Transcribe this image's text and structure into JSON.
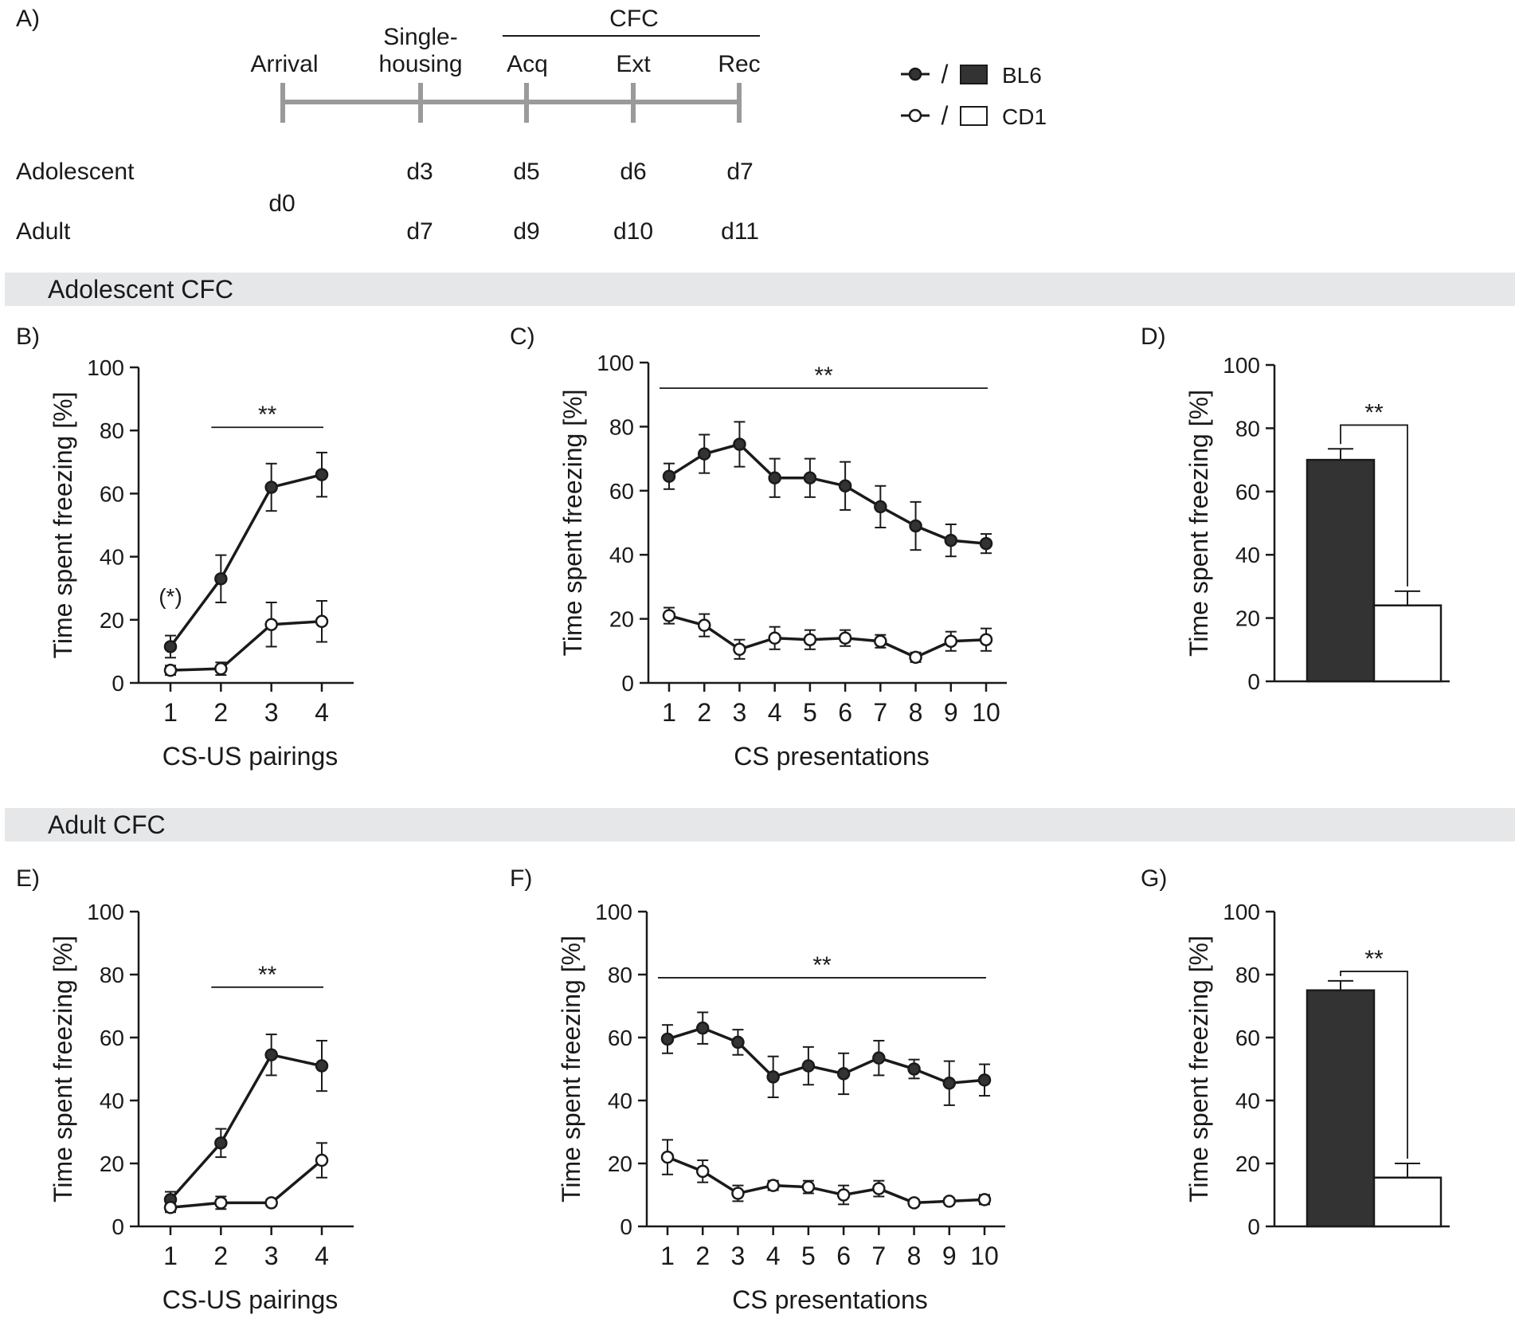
{
  "timeline": {
    "panel_label": "A)",
    "ticks": [
      {
        "label": "Arrival",
        "adolescent_day": "",
        "adult_day": ""
      },
      {
        "label": "Single-housing",
        "label_line1": "Single-",
        "label_line2": "housing",
        "adolescent_day": "d3",
        "adult_day": "d7"
      },
      {
        "label": "Acq",
        "adolescent_day": "d5",
        "adult_day": "d9"
      },
      {
        "label": "Ext",
        "adolescent_day": "d6",
        "adult_day": "d10"
      },
      {
        "label": "Rec",
        "adolescent_day": "d7",
        "adult_day": "d11"
      }
    ],
    "cfc_label": "CFC",
    "row_labels": {
      "adolescent": "Adolescent",
      "adult": "Adult"
    },
    "shared_day": "d0"
  },
  "legend": {
    "items": [
      {
        "name": "BL6",
        "marker": "filled-circle",
        "bar": "dark"
      },
      {
        "name": "CD1",
        "marker": "open-circle",
        "bar": "white"
      }
    ],
    "separator": "/"
  },
  "sections": {
    "adolescent": "Adolescent CFC",
    "adult": "Adult CFC"
  },
  "colors": {
    "bl6": "#333333",
    "cd1": "#ffffff",
    "axis": "#1a1a1a",
    "timeline": "#9a9a9a",
    "section_band": "#e6e7e8"
  },
  "chart_data": [
    {
      "panel": "B)",
      "type": "line",
      "x": [
        1,
        2,
        3,
        4
      ],
      "xlabel": "CS-US pairings",
      "ylabel": "Time spent freezing [%]",
      "ylim": [
        0,
        100
      ],
      "yticks": [
        0,
        20,
        40,
        60,
        80,
        100
      ],
      "series": [
        {
          "name": "BL6",
          "values": [
            11.5,
            33,
            62,
            66
          ],
          "errors": [
            3.5,
            7.5,
            7.5,
            7
          ]
        },
        {
          "name": "CD1",
          "values": [
            4,
            4.5,
            18.5,
            19.5
          ],
          "errors": [
            1.5,
            2,
            7,
            6.5
          ]
        }
      ],
      "annotations": [
        {
          "text": "**",
          "from": 2,
          "to": 4,
          "y": 81
        },
        {
          "text": "(*)",
          "x": 1,
          "y": 25
        }
      ]
    },
    {
      "panel": "C)",
      "type": "line",
      "x": [
        1,
        2,
        3,
        4,
        5,
        6,
        7,
        8,
        9,
        10
      ],
      "xlabel": "CS presentations",
      "ylabel": "Time spent freezing [%]",
      "ylim": [
        0,
        100
      ],
      "yticks": [
        0,
        20,
        40,
        60,
        80,
        100
      ],
      "series": [
        {
          "name": "BL6",
          "values": [
            64.5,
            71.5,
            74.5,
            64,
            64,
            61.5,
            55,
            49,
            44.5,
            43.5
          ],
          "errors": [
            4,
            6,
            7,
            6,
            6,
            7.5,
            6.5,
            7.5,
            5,
            3
          ]
        },
        {
          "name": "CD1",
          "values": [
            21,
            18,
            10.5,
            14,
            13.5,
            14,
            13,
            8,
            13,
            13.5
          ],
          "errors": [
            2.5,
            3.5,
            3,
            3.5,
            3,
            2.5,
            2,
            1.5,
            3,
            3.5
          ]
        }
      ],
      "annotations": [
        {
          "text": "**",
          "from": 1,
          "to": 10,
          "y": 92
        }
      ]
    },
    {
      "panel": "D)",
      "type": "bar",
      "categories": [
        "BL6",
        "CD1"
      ],
      "values": [
        70,
        24
      ],
      "errors": [
        3.5,
        4.5
      ],
      "xlabel": "",
      "ylabel": "Time spent freezing [%]",
      "ylim": [
        0,
        100
      ],
      "yticks": [
        0,
        20,
        40,
        60,
        80,
        100
      ],
      "annotations": [
        {
          "text": "**",
          "y": 81
        }
      ]
    },
    {
      "panel": "E)",
      "type": "line",
      "x": [
        1,
        2,
        3,
        4
      ],
      "xlabel": "CS-US pairings",
      "ylabel": "Time spent freezing [%]",
      "ylim": [
        0,
        100
      ],
      "yticks": [
        0,
        20,
        40,
        60,
        80,
        100
      ],
      "series": [
        {
          "name": "BL6",
          "values": [
            8.5,
            26.5,
            54.5,
            51
          ],
          "errors": [
            2.5,
            4.5,
            6.5,
            8
          ]
        },
        {
          "name": "CD1",
          "values": [
            6,
            7.5,
            7.5,
            21
          ],
          "errors": [
            1.5,
            2,
            1,
            5.5
          ]
        }
      ],
      "annotations": [
        {
          "text": "**",
          "from": 2,
          "to": 4,
          "y": 76
        }
      ]
    },
    {
      "panel": "F)",
      "type": "line",
      "x": [
        1,
        2,
        3,
        4,
        5,
        6,
        7,
        8,
        9,
        10
      ],
      "xlabel": "CS presentations",
      "ylabel": "Time spent freezing [%]",
      "ylim": [
        0,
        100
      ],
      "yticks": [
        0,
        20,
        40,
        60,
        80,
        100
      ],
      "series": [
        {
          "name": "BL6",
          "values": [
            59.5,
            63,
            58.5,
            47.5,
            51,
            48.5,
            53.5,
            50,
            45.5,
            46.5
          ],
          "errors": [
            4.5,
            5,
            4,
            6.5,
            6,
            6.5,
            5.5,
            3,
            7,
            5
          ]
        },
        {
          "name": "CD1",
          "values": [
            22,
            17.5,
            10.5,
            13,
            12.5,
            10,
            12,
            7.5,
            8,
            8.5
          ],
          "errors": [
            5.5,
            3.5,
            2.5,
            1.5,
            2,
            3,
            2.5,
            1,
            1,
            1.5
          ]
        }
      ],
      "annotations": [
        {
          "text": "**",
          "from": 1,
          "to": 10,
          "y": 79
        }
      ]
    },
    {
      "panel": "G)",
      "type": "bar",
      "categories": [
        "BL6",
        "CD1"
      ],
      "values": [
        75,
        15.5
      ],
      "errors": [
        3,
        4.5
      ],
      "xlabel": "",
      "ylabel": "Time spent freezing [%]",
      "ylim": [
        0,
        100
      ],
      "yticks": [
        0,
        20,
        40,
        60,
        80,
        100
      ],
      "annotations": [
        {
          "text": "**",
          "y": 81
        }
      ]
    }
  ]
}
